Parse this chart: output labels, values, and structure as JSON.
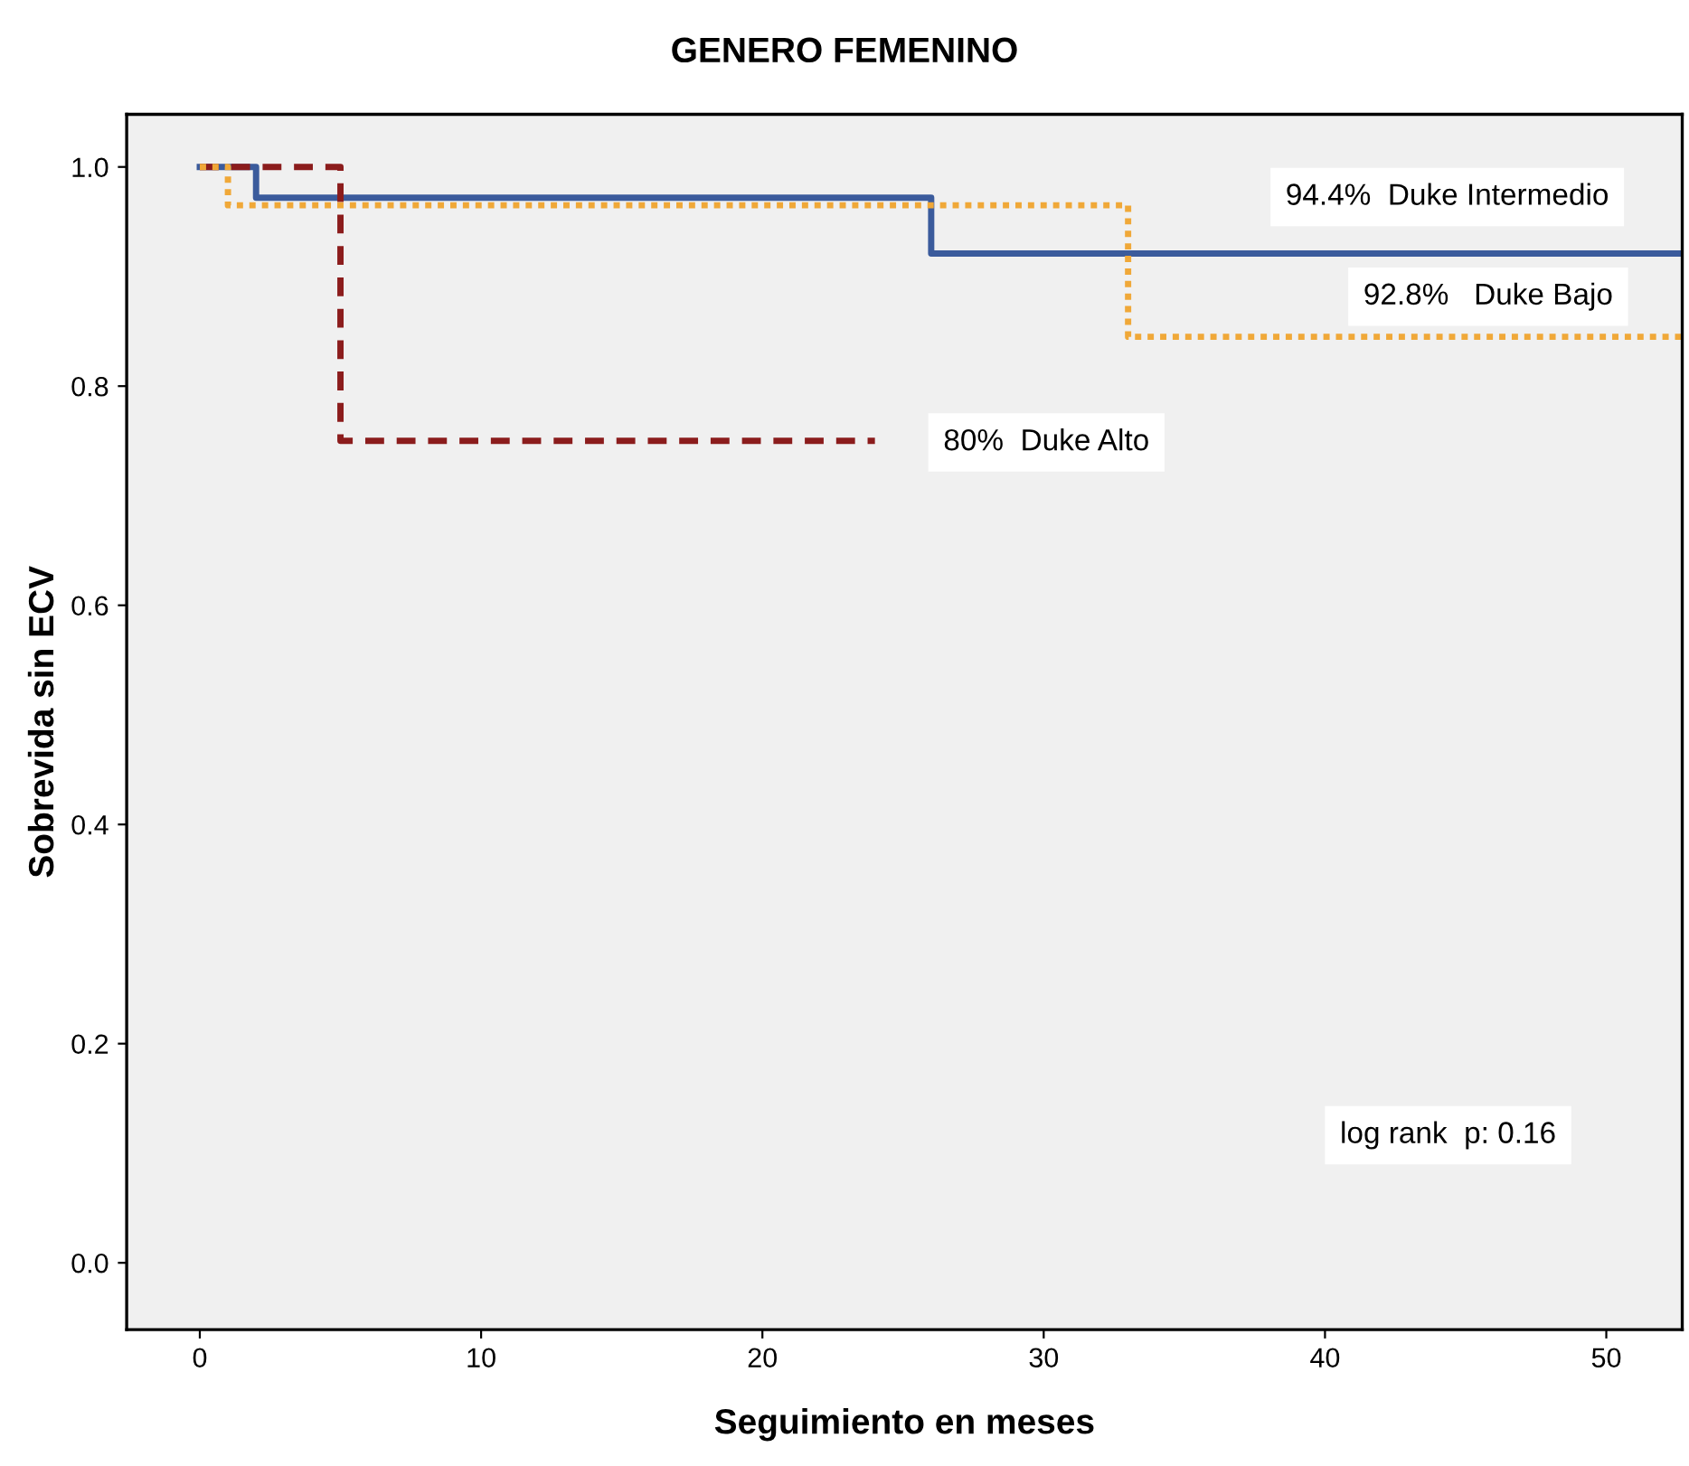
{
  "chart_data": {
    "type": "step",
    "title": "GENERO FEMENINO",
    "xlabel": "Seguimiento en meses",
    "ylabel": "Sobrevida sin ECV",
    "series": [
      {
        "color": "#3b5b9c",
        "line_style": "solid",
        "x": [
          0,
          2,
          26,
          52.7
        ],
        "values": [
          1.0,
          0.972,
          0.921,
          0.921
        ]
      },
      {
        "color": "#8b1c1c",
        "line_style": "dashed",
        "x": [
          0,
          5,
          24
        ],
        "values": [
          1.0,
          0.75,
          0.75
        ]
      },
      {
        "color": "#f0a838",
        "line_style": "dotted",
        "x": [
          0,
          1,
          33,
          52.7
        ],
        "values": [
          1.0,
          0.965,
          0.845,
          0.845
        ]
      }
    ],
    "annotations": [
      "94.4%  Duke Intermedio",
      "92.8%   Duke Bajo",
      "80%  Duke Alto",
      "log rank  p: 0.16"
    ],
    "xlim": [
      -2.6,
      52.7
    ],
    "ylim": [
      -0.061,
      1.048
    ],
    "xticks": [
      0,
      10,
      20,
      30,
      40,
      50
    ],
    "yticks": [
      {
        "value": 0,
        "label": "0.0"
      },
      {
        "value": 0.2,
        "label": "0.2"
      },
      {
        "value": 0.4,
        "label": "0.4"
      },
      {
        "value": 0.6,
        "label": "0.6"
      },
      {
        "value": 0.8,
        "label": "0.8"
      },
      {
        "value": 1.0,
        "label": "1.0"
      }
    ],
    "grid": false,
    "legend": false
  }
}
